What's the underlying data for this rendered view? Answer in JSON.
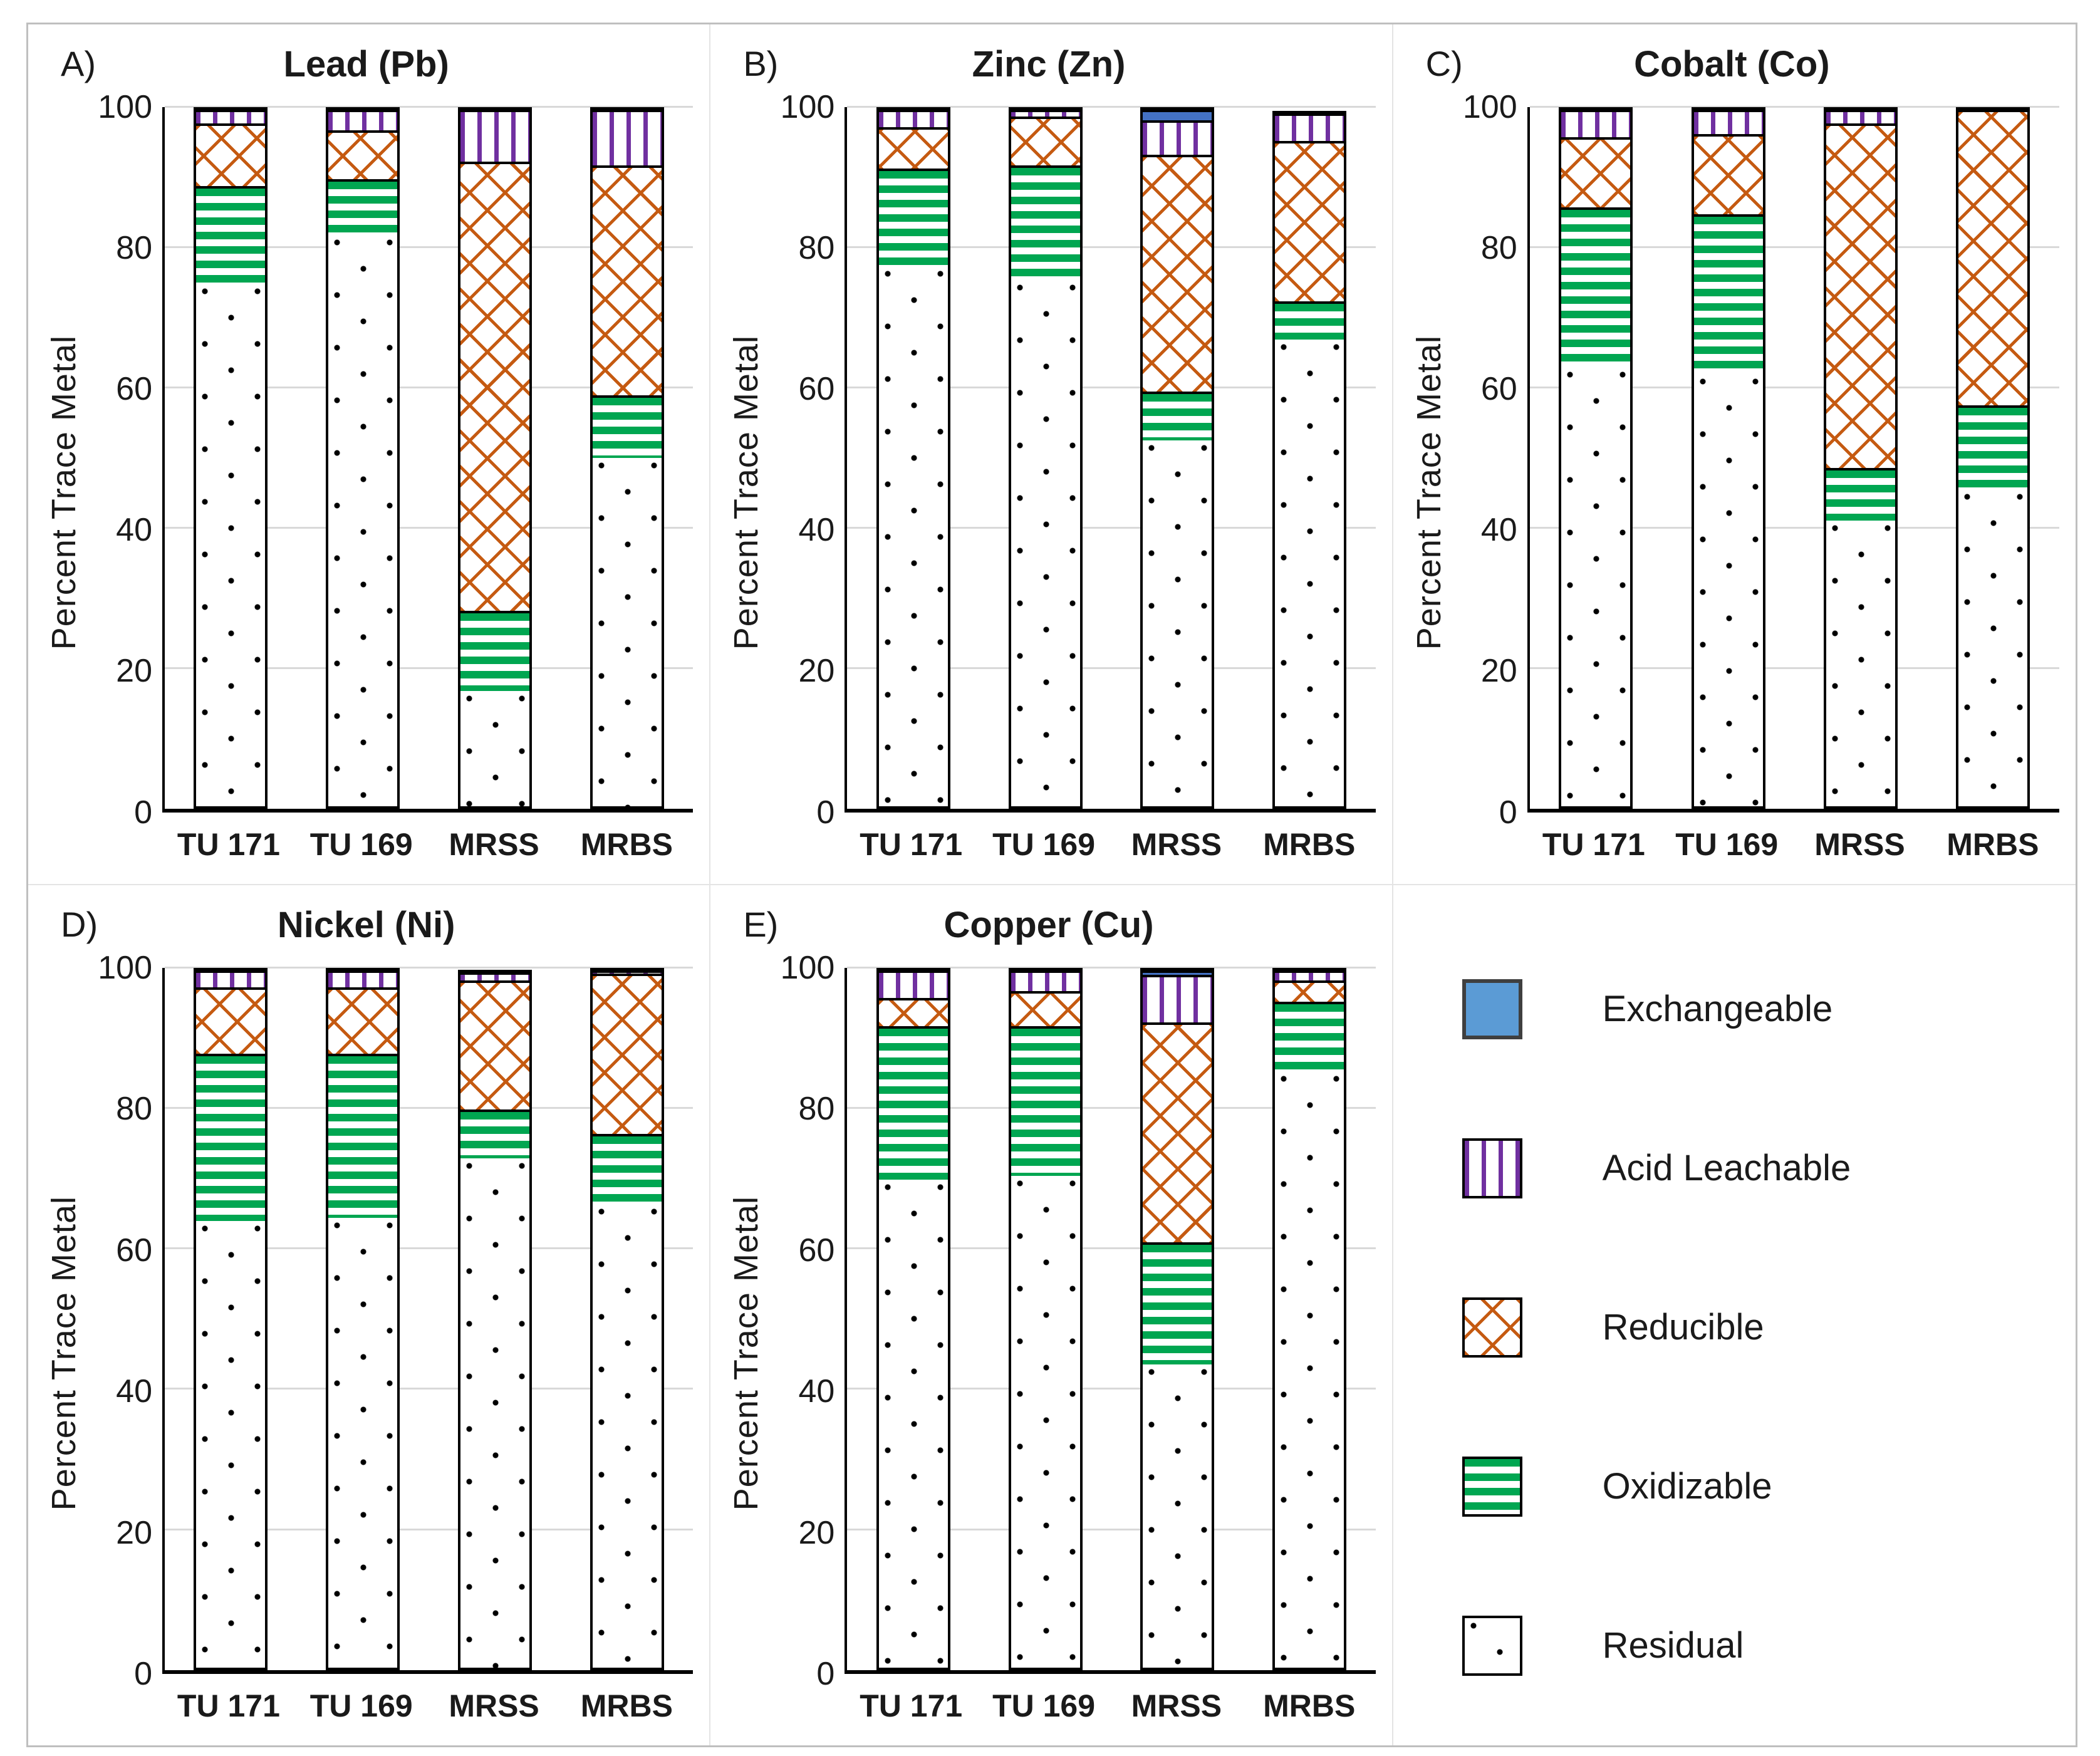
{
  "figure": {
    "ylabel": "Percent Trace Metal",
    "y_ticks": [
      0,
      20,
      40,
      60,
      80,
      100
    ],
    "categories": [
      "TU 171",
      "TU 169",
      "MRSS",
      "MRBS"
    ]
  },
  "chart_data": [
    {
      "type": "bar",
      "subtype": "stacked-percent",
      "panel_letter": "A)",
      "title": "Lead (Pb)",
      "ylabel": "Percent Trace Metal",
      "ylim": [
        0,
        100
      ],
      "y_ticks": [
        0,
        20,
        40,
        60,
        80,
        100
      ],
      "grid": true,
      "categories": [
        "TU 171",
        "TU 169",
        "MRSS",
        "MRBS"
      ],
      "series": [
        {
          "name": "Residual",
          "key": "residual",
          "values": [
            75,
            82,
            16.5,
            50
          ]
        },
        {
          "name": "Oxidizable",
          "key": "oxidizable",
          "values": [
            14,
            8,
            11.5,
            9
          ]
        },
        {
          "name": "Reducible",
          "key": "reducible",
          "values": [
            9,
            7,
            64.5,
            33
          ]
        },
        {
          "name": "Acid Leachable",
          "key": "acid_leachable",
          "values": [
            2,
            3,
            7.5,
            8
          ]
        },
        {
          "name": "Exchangeable",
          "key": "exchangeable",
          "values": [
            0,
            0,
            0,
            0
          ]
        }
      ]
    },
    {
      "type": "bar",
      "subtype": "stacked-percent",
      "panel_letter": "B)",
      "title": "Zinc (Zn)",
      "ylabel": "Percent Trace Metal",
      "ylim": [
        0,
        100
      ],
      "y_ticks": [
        0,
        20,
        40,
        60,
        80,
        100
      ],
      "grid": true,
      "categories": [
        "TU 171",
        "TU 169",
        "MRSS",
        "MRBS"
      ],
      "series": [
        {
          "name": "Residual",
          "key": "residual",
          "values": [
            77.5,
            75.5,
            52.5,
            67
          ]
        },
        {
          "name": "Oxidizable",
          "key": "oxidizable",
          "values": [
            14,
            16.5,
            7,
            5.5
          ]
        },
        {
          "name": "Reducible",
          "key": "reducible",
          "values": [
            6,
            7,
            34,
            23
          ]
        },
        {
          "name": "Acid Leachable",
          "key": "acid_leachable",
          "values": [
            2.5,
            1,
            5,
            4
          ]
        },
        {
          "name": "Exchangeable",
          "key": "exchangeable",
          "values": [
            0,
            0,
            1.5,
            0
          ]
        }
      ]
    },
    {
      "type": "bar",
      "subtype": "stacked-percent",
      "panel_letter": "C)",
      "title": "Cobalt (Co)",
      "ylabel": "Percent Trace Metal",
      "ylim": [
        0,
        100
      ],
      "y_ticks": [
        0,
        20,
        40,
        60,
        80,
        100
      ],
      "grid": true,
      "categories": [
        "TU 171",
        "TU 169",
        "MRSS",
        "MRBS"
      ],
      "series": [
        {
          "name": "Residual",
          "key": "residual",
          "values": [
            63,
            62,
            41,
            45.5
          ]
        },
        {
          "name": "Oxidizable",
          "key": "oxidizable",
          "values": [
            23,
            23,
            7.5,
            12
          ]
        },
        {
          "name": "Reducible",
          "key": "reducible",
          "values": [
            10,
            11.5,
            49.5,
            42.5
          ]
        },
        {
          "name": "Acid Leachable",
          "key": "acid_leachable",
          "values": [
            4,
            3.5,
            2,
            0
          ]
        },
        {
          "name": "Exchangeable",
          "key": "exchangeable",
          "values": [
            0,
            0,
            0,
            0
          ]
        }
      ]
    },
    {
      "type": "bar",
      "subtype": "stacked-percent",
      "panel_letter": "D)",
      "title": "Nickel (Ni)",
      "ylabel": "Percent Trace Metal",
      "ylim": [
        0,
        100
      ],
      "y_ticks": [
        0,
        20,
        40,
        60,
        80,
        100
      ],
      "grid": true,
      "categories": [
        "TU 171",
        "TU 169",
        "MRSS",
        "MRBS"
      ],
      "series": [
        {
          "name": "Residual",
          "key": "residual",
          "values": [
            64,
            64.5,
            73,
            66.5
          ]
        },
        {
          "name": "Oxidizable",
          "key": "oxidizable",
          "values": [
            24,
            23.5,
            7,
            10
          ]
        },
        {
          "name": "Reducible",
          "key": "reducible",
          "values": [
            9.5,
            9.5,
            18.5,
            23
          ]
        },
        {
          "name": "Acid Leachable",
          "key": "acid_leachable",
          "values": [
            2.5,
            2.5,
            1.2,
            0.5
          ]
        },
        {
          "name": "Exchangeable",
          "key": "exchangeable",
          "values": [
            0,
            0,
            0,
            0
          ]
        }
      ]
    },
    {
      "type": "bar",
      "subtype": "stacked-percent",
      "panel_letter": "E)",
      "title": "Copper (Cu)",
      "ylabel": "Percent Trace Metal",
      "ylim": [
        0,
        100
      ],
      "y_ticks": [
        0,
        20,
        40,
        60,
        80,
        100
      ],
      "grid": true,
      "categories": [
        "TU 171",
        "TU 169",
        "MRSS",
        "MRBS"
      ],
      "series": [
        {
          "name": "Residual",
          "key": "residual",
          "values": [
            70,
            70.5,
            43.5,
            85.5
          ]
        },
        {
          "name": "Oxidizable",
          "key": "oxidizable",
          "values": [
            22,
            21.5,
            17.5,
            10
          ]
        },
        {
          "name": "Reducible",
          "key": "reducible",
          "values": [
            4,
            5,
            31.5,
            3
          ]
        },
        {
          "name": "Acid Leachable",
          "key": "acid_leachable",
          "values": [
            4,
            3,
            6.8,
            1.5
          ]
        },
        {
          "name": "Exchangeable",
          "key": "exchangeable",
          "values": [
            0,
            0,
            0.7,
            0
          ]
        }
      ]
    }
  ],
  "legend": {
    "position": "bottom-right",
    "items": [
      {
        "label": "Exchangeable",
        "key": "exchangeable",
        "swatch": "solid-blue-square"
      },
      {
        "label": "Acid Leachable",
        "key": "acid_leachable",
        "swatch": "purple-vertical-stripes"
      },
      {
        "label": "Reducible",
        "key": "reducible",
        "swatch": "orange-diagonal-hatch"
      },
      {
        "label": "Oxidizable",
        "key": "oxidizable",
        "swatch": "green-horizontal-stripes"
      },
      {
        "label": "Residual",
        "key": "residual",
        "swatch": "black-dots-on-white"
      }
    ]
  },
  "colors": {
    "exchangeable": "#4472C4",
    "exchangeable_legend_swatch": "#5B9BD5",
    "acid_leachable": "#7030A0",
    "reducible": "#C55A11",
    "oxidizable": "#00A651",
    "residual_dots": "#000000",
    "bar_border": "#000000",
    "gridline": "#D9D9D9",
    "frame_border": "#BFBFBF",
    "text": "#1A1A1A"
  }
}
